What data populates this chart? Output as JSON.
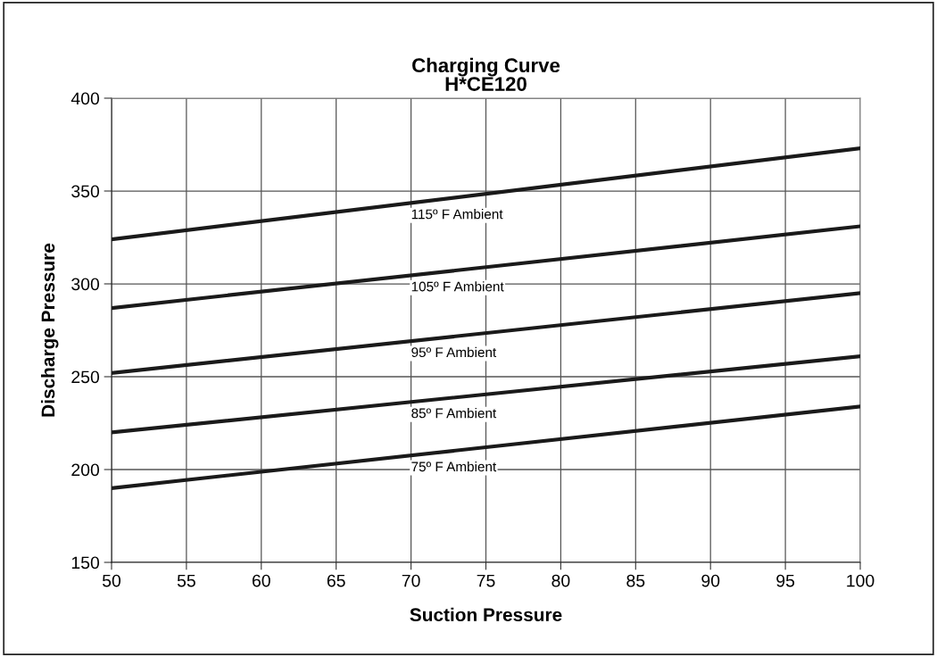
{
  "chart_data": {
    "type": "line",
    "title": "Charging Curve\nH*CE120",
    "xlabel": "Suction Pressure",
    "ylabel": "Discharge Pressure",
    "x": [
      50,
      100
    ],
    "series": [
      {
        "name": "115º F Ambient",
        "color": "#1a1a1a",
        "values": [
          324,
          373
        ]
      },
      {
        "name": "105º F Ambient",
        "color": "#1a1a1a",
        "values": [
          287,
          331
        ]
      },
      {
        "name": "95º F Ambient",
        "color": "#1a1a1a",
        "values": [
          252,
          295
        ]
      },
      {
        "name": "85º F Ambient",
        "color": "#1a1a1a",
        "values": [
          220,
          261
        ]
      },
      {
        "name": "75º F Ambient",
        "color": "#1a1a1a",
        "values": [
          190,
          234
        ]
      }
    ],
    "xlim": [
      50,
      100
    ],
    "xticks": [
      50,
      55,
      60,
      65,
      70,
      75,
      80,
      85,
      90,
      95,
      100
    ],
    "ylim": [
      150,
      400
    ],
    "yticks": [
      150,
      200,
      250,
      300,
      350,
      400
    ],
    "grid": true,
    "marker": "none",
    "line_style": "solid"
  }
}
